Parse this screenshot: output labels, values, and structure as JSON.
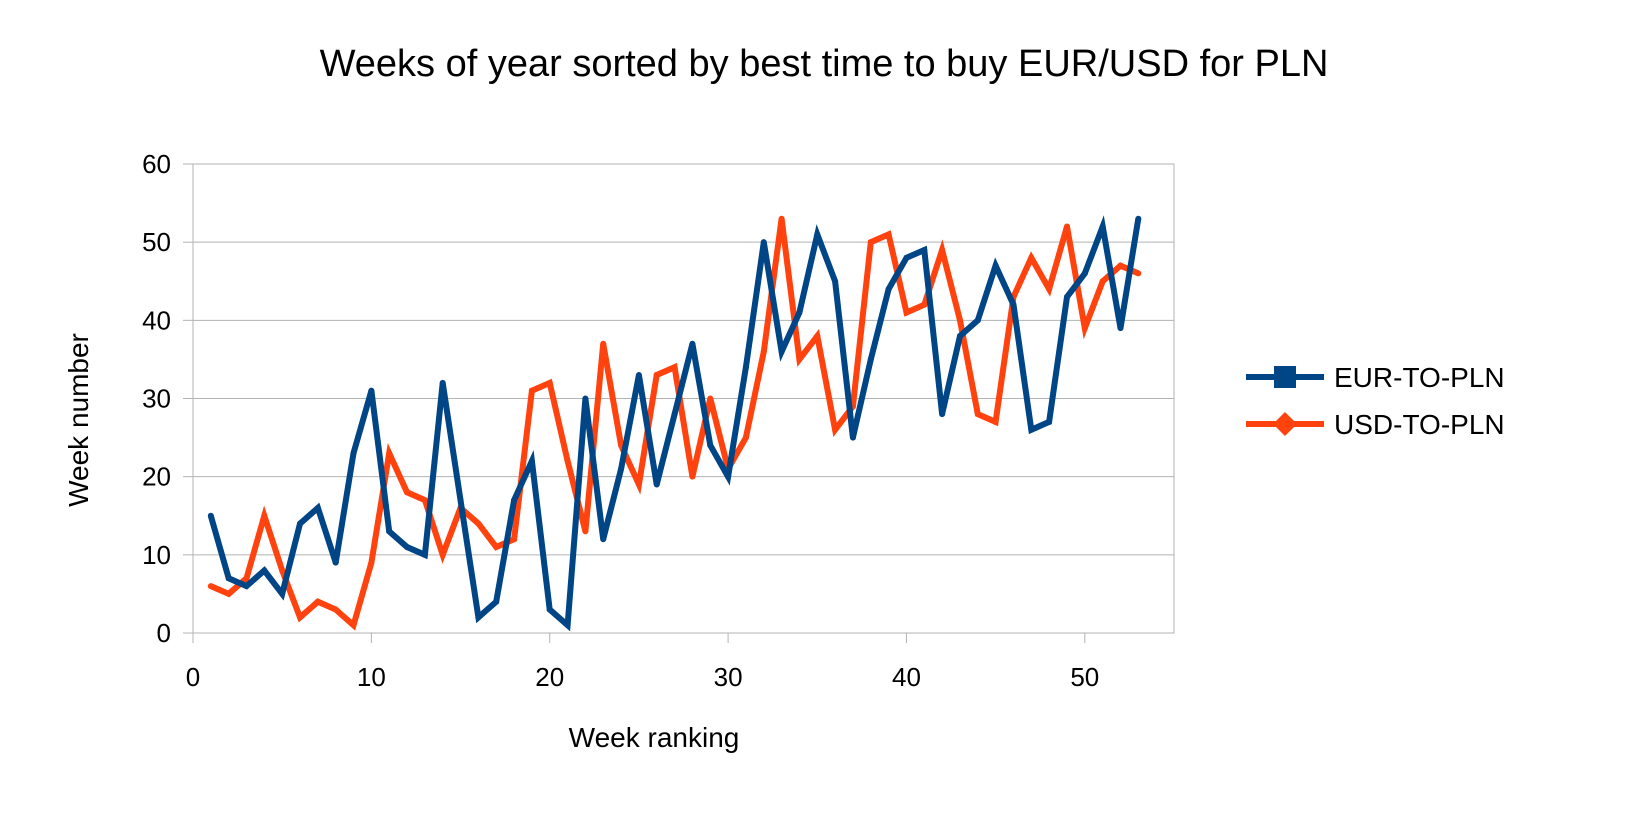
{
  "chart_data": {
    "type": "line",
    "title": "Weeks of year sorted by best time to buy EUR/USD for PLN",
    "xlabel": "Week ranking",
    "ylabel": "Week number",
    "xlim": [
      0,
      55
    ],
    "ylim": [
      0,
      60
    ],
    "x_ticks": [
      0,
      10,
      20,
      30,
      40,
      50
    ],
    "y_ticks": [
      0,
      10,
      20,
      30,
      40,
      50,
      60
    ],
    "grid": "horizontal",
    "legend_position": "right",
    "x": [
      1,
      2,
      3,
      4,
      5,
      6,
      7,
      8,
      9,
      10,
      11,
      12,
      13,
      14,
      15,
      16,
      17,
      18,
      19,
      20,
      21,
      22,
      23,
      24,
      25,
      26,
      27,
      28,
      29,
      30,
      31,
      32,
      33,
      34,
      35,
      36,
      37,
      38,
      39,
      40,
      41,
      42,
      43,
      44,
      45,
      46,
      47,
      48,
      49,
      50,
      51,
      52,
      53
    ],
    "series": [
      {
        "name": "EUR-TO-PLN",
        "color": "#004586",
        "marker": "square",
        "values": [
          15,
          7,
          6,
          8,
          5,
          14,
          16,
          9,
          23,
          31,
          13,
          11,
          10,
          32,
          17,
          2,
          4,
          17,
          22,
          3,
          1,
          30,
          12,
          21,
          33,
          19,
          28,
          37,
          24,
          20,
          34,
          50,
          36,
          41,
          51,
          45,
          25,
          35,
          44,
          48,
          49,
          28,
          38,
          40,
          47,
          42,
          26,
          27,
          43,
          46,
          52,
          39,
          53
        ]
      },
      {
        "name": "USD-TO-PLN",
        "color": "#ff420e",
        "marker": "diamond",
        "values": [
          6,
          5,
          7,
          15,
          8,
          2,
          4,
          3,
          1,
          9,
          23,
          18,
          17,
          10,
          16,
          14,
          11,
          12,
          31,
          32,
          22,
          13,
          37,
          24,
          19,
          33,
          34,
          20,
          30,
          21,
          25,
          36,
          53,
          35,
          38,
          26,
          29,
          50,
          51,
          41,
          42,
          49,
          40,
          28,
          27,
          43,
          48,
          44,
          52,
          39,
          45,
          47,
          46
        ]
      }
    ]
  }
}
